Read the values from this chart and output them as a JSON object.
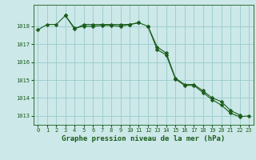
{
  "title": "Graphe pression niveau de la mer (hPa)",
  "background_color": "#cce8e8",
  "plot_bg_color": "#cce8e8",
  "grid_color": "#99cccc",
  "line_color": "#1a5c1a",
  "marker_color": "#1a5c1a",
  "hours": [
    0,
    1,
    2,
    3,
    4,
    5,
    6,
    7,
    8,
    9,
    10,
    11,
    12,
    13,
    14,
    15,
    16,
    17,
    18,
    19,
    20,
    21,
    22,
    23
  ],
  "series1": [
    1017.8,
    1018.1,
    1018.1,
    1018.6,
    1017.85,
    1018.1,
    1018.1,
    1018.1,
    1018.1,
    1018.1,
    1018.1,
    1018.2,
    null,
    null,
    null,
    null,
    null,
    null,
    null,
    null,
    null,
    null,
    null,
    null
  ],
  "series2": [
    null,
    null,
    null,
    1018.6,
    1017.9,
    1018.0,
    1018.0,
    1018.05,
    1018.05,
    1018.0,
    1018.1,
    1018.2,
    1018.0,
    1016.85,
    1016.5,
    1015.1,
    1014.75,
    1014.75,
    1014.4,
    1014.0,
    1013.8,
    1013.3,
    1013.05,
    null
  ],
  "series3": [
    null,
    null,
    null,
    null,
    null,
    null,
    null,
    null,
    null,
    null,
    null,
    null,
    1018.0,
    1016.7,
    1016.4,
    1015.05,
    1014.7,
    1014.7,
    1014.3,
    1013.9,
    1013.6,
    1013.15,
    1012.95,
    1013.0
  ],
  "ylim": [
    1012.5,
    1019.2
  ],
  "yticks": [
    1013,
    1014,
    1015,
    1016,
    1017,
    1018
  ],
  "xlim": [
    -0.5,
    23.5
  ],
  "xticks": [
    0,
    1,
    2,
    3,
    4,
    5,
    6,
    7,
    8,
    9,
    10,
    11,
    12,
    13,
    14,
    15,
    16,
    17,
    18,
    19,
    20,
    21,
    22,
    23
  ],
  "title_fontsize": 6.5,
  "tick_fontsize": 5.0,
  "marker_size": 2.5,
  "linewidth": 0.8
}
